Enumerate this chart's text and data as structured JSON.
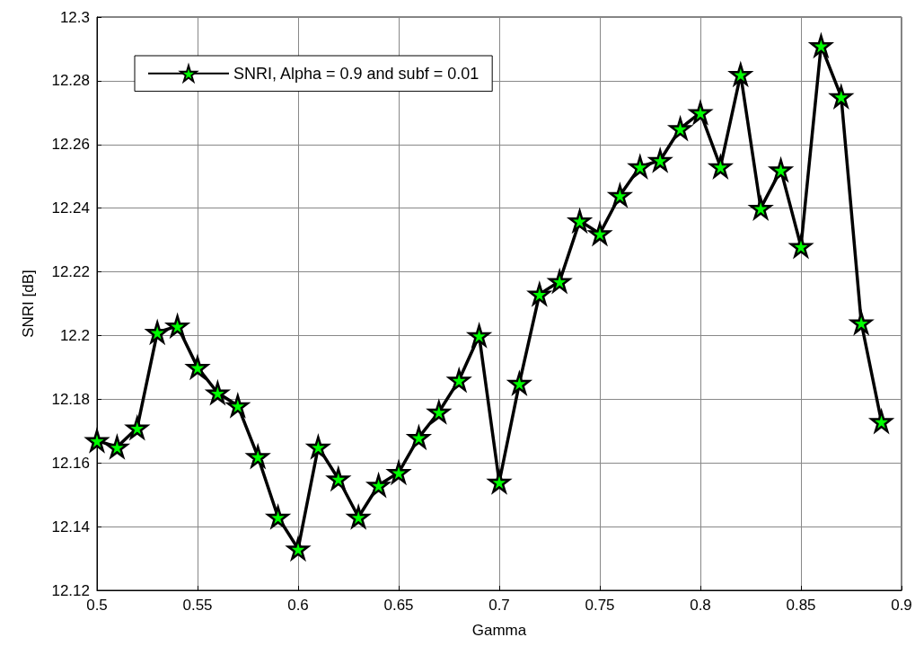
{
  "chart_data": {
    "type": "line",
    "xlabel": "Gamma",
    "ylabel": "SNRI [dB]",
    "x": [
      0.5,
      0.51,
      0.52,
      0.53,
      0.54,
      0.55,
      0.56,
      0.57,
      0.58,
      0.59,
      0.6,
      0.61,
      0.62,
      0.63,
      0.64,
      0.65,
      0.66,
      0.67,
      0.68,
      0.69,
      0.7,
      0.71,
      0.72,
      0.73,
      0.74,
      0.75,
      0.76,
      0.77,
      0.78,
      0.79,
      0.8,
      0.81,
      0.82,
      0.83,
      0.84,
      0.85,
      0.86,
      0.87,
      0.88,
      0.89
    ],
    "series": [
      {
        "name": "SNRI, Alpha = 0.9 and subf = 0.01",
        "color": "#000000",
        "values": [
          12.167,
          12.165,
          12.171,
          12.201,
          12.203,
          12.19,
          12.182,
          12.178,
          12.162,
          12.143,
          12.133,
          12.165,
          12.155,
          12.143,
          12.153,
          12.157,
          12.168,
          12.176,
          12.186,
          12.2,
          12.154,
          12.185,
          12.213,
          12.217,
          12.236,
          12.232,
          12.244,
          12.253,
          12.255,
          12.265,
          12.27,
          12.253,
          12.282,
          12.24,
          12.252,
          12.228,
          12.291,
          12.275,
          12.204,
          12.173
        ]
      }
    ],
    "xlim": [
      0.5,
      0.9
    ],
    "xticks": [
      0.5,
      0.55,
      0.6,
      0.65,
      0.7,
      0.75,
      0.8,
      0.85,
      0.9
    ],
    "ylim": [
      12.12,
      12.3
    ],
    "yticks": [
      12.12,
      12.14,
      12.16,
      12.18,
      12.2,
      12.22,
      12.24,
      12.26,
      12.28,
      12.3
    ],
    "grid": true,
    "legend": "top left",
    "marker": "star",
    "line_style": "solid"
  }
}
